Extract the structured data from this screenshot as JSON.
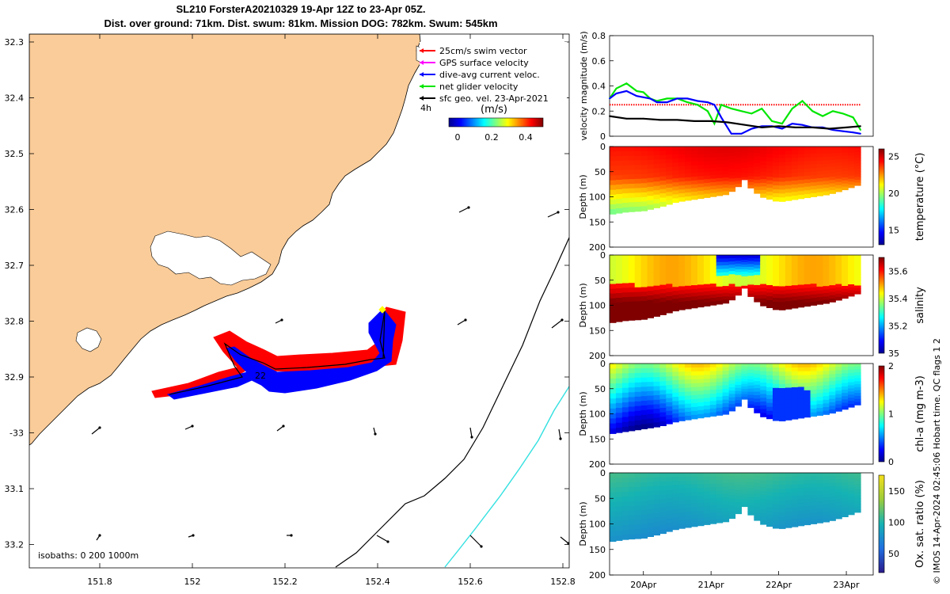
{
  "header": {
    "title_line1": "SL210 ForsterA20210329 19-Apr 12Z to 23-Apr 05Z.",
    "title_line2": "Dist. over ground: 71km. Dist. swum: 81km. Mission DOG: 782km. Swum: 545km"
  },
  "colors": {
    "land": "#FACC99",
    "sea": "#ffffff",
    "track_red": "#ff0000",
    "track_blue": "#0000ff",
    "net_velocity": "#00e600",
    "isobath_200": "#000000",
    "isobath_1000": "#33e0e0",
    "swim_vector": "#ff0000",
    "gps_velocity": "#ff00ff"
  },
  "map": {
    "legend": {
      "items": [
        {
          "label": "25cm/s swim vector",
          "color": "#ff0000"
        },
        {
          "label": "GPS surface velocity",
          "color": "#ff00ff"
        },
        {
          "label": "dive-avg current veloc.",
          "color": "#0000ff"
        },
        {
          "label": "net glider velocity",
          "color": "#00e600"
        },
        {
          "label": "sfc geo. vel. 23-Apr-2021",
          "color": "#000000"
        }
      ],
      "colorbar_unit": "(m/s)",
      "colorbar_ticks": [
        "0",
        "0.2",
        "0.4"
      ],
      "fragment_text": "4h"
    },
    "track_label": "22",
    "isobath_text": "isobaths: 0   200  1000m",
    "lat_ticks": [
      "32.3",
      "32.4",
      "32.5",
      "32.6",
      "32.7",
      "32.8",
      "32.9",
      "-33",
      "33.1",
      "33.2"
    ],
    "lon_ticks": [
      "151.8",
      "152",
      "152.2",
      "152.4",
      "152.6",
      "152.8"
    ]
  },
  "chart_data": [
    {
      "type": "line",
      "ylabel": "velocity magnitude (m/s)",
      "ylim": [
        0,
        0.8
      ],
      "yticks": [
        "0",
        "0.2",
        "0.4",
        "0.6",
        "0.8"
      ],
      "x_range_days": [
        19.5,
        23.21
      ],
      "series": [
        {
          "color": "#ff0000",
          "style": "dotted",
          "x": [
            19.5,
            23.21
          ],
          "values": [
            0.25,
            0.25
          ]
        },
        {
          "color": "#00e600",
          "x": [
            19.5,
            19.6,
            19.75,
            19.9,
            20.0,
            20.1,
            20.2,
            20.35,
            20.5,
            20.65,
            20.8,
            20.95,
            21.05,
            21.15,
            21.3,
            21.45,
            21.6,
            21.75,
            21.9,
            22.05,
            22.2,
            22.35,
            22.5,
            22.65,
            22.8,
            22.95,
            23.1,
            23.21
          ],
          "values": [
            0.3,
            0.38,
            0.42,
            0.36,
            0.35,
            0.3,
            0.28,
            0.3,
            0.3,
            0.27,
            0.25,
            0.2,
            0.1,
            0.25,
            0.22,
            0.2,
            0.18,
            0.22,
            0.12,
            0.1,
            0.22,
            0.28,
            0.2,
            0.16,
            0.2,
            0.18,
            0.15,
            0.05
          ]
        },
        {
          "color": "#0000ff",
          "x": [
            19.5,
            19.6,
            19.75,
            19.9,
            20.0,
            20.1,
            20.2,
            20.35,
            20.5,
            20.65,
            20.8,
            20.95,
            21.05,
            21.15,
            21.3,
            21.45,
            21.6,
            21.75,
            21.9,
            22.05,
            22.2,
            22.35,
            22.5,
            22.65,
            22.8,
            22.95,
            23.1,
            23.21
          ],
          "values": [
            0.3,
            0.34,
            0.36,
            0.32,
            0.31,
            0.3,
            0.27,
            0.27,
            0.3,
            0.3,
            0.28,
            0.27,
            0.25,
            0.15,
            0.02,
            0.02,
            0.06,
            0.08,
            0.08,
            0.06,
            0.1,
            0.09,
            0.07,
            0.07,
            0.05,
            0.04,
            0.03,
            0.02
          ]
        },
        {
          "color": "#000000",
          "x": [
            19.5,
            19.75,
            20.0,
            20.25,
            20.5,
            20.75,
            21.0,
            21.25,
            21.5,
            21.75,
            22.0,
            22.25,
            22.5,
            22.75,
            23.0,
            23.21
          ],
          "values": [
            0.16,
            0.14,
            0.14,
            0.13,
            0.13,
            0.12,
            0.12,
            0.11,
            0.09,
            0.07,
            0.08,
            0.07,
            0.07,
            0.06,
            0.07,
            0.08
          ]
        }
      ]
    },
    {
      "type": "heatmap",
      "ylabel": "Depth (m)",
      "yticks": [
        "0",
        "50",
        "100",
        "150",
        "200"
      ],
      "colorbar_label": "temperature (°C)",
      "colorbar_ticks": [
        "15",
        "20",
        "25"
      ],
      "clim": [
        13,
        26
      ],
      "bottom_depth_m": {
        "x": [
          19.5,
          19.75,
          20.0,
          20.25,
          20.5,
          20.75,
          21.0,
          21.25,
          21.4,
          21.5,
          21.6,
          21.75,
          22.0,
          22.25,
          22.5,
          22.75,
          23.0,
          23.21
        ],
        "values": [
          135,
          130,
          128,
          120,
          110,
          105,
          100,
          95,
          80,
          65,
          85,
          100,
          110,
          105,
          100,
          95,
          85,
          75
        ]
      }
    },
    {
      "type": "heatmap",
      "ylabel": "Depth (m)",
      "yticks": [
        "0",
        "50",
        "100",
        "150",
        "200"
      ],
      "colorbar_label": "salinity",
      "colorbar_ticks": [
        "35",
        "35.2",
        "35.4",
        "35.6"
      ],
      "clim": [
        35.0,
        35.7
      ],
      "bottom_depth_m": {
        "x": [
          19.5,
          19.75,
          20.0,
          20.25,
          20.5,
          20.75,
          21.0,
          21.25,
          21.4,
          21.5,
          21.6,
          21.75,
          22.0,
          22.25,
          22.5,
          22.75,
          23.0,
          23.21
        ],
        "values": [
          135,
          130,
          128,
          120,
          110,
          105,
          100,
          95,
          80,
          65,
          85,
          100,
          110,
          105,
          100,
          95,
          85,
          75
        ]
      }
    },
    {
      "type": "heatmap",
      "ylabel": "Depth (m)",
      "yticks": [
        "0",
        "50",
        "100",
        "150",
        "200"
      ],
      "colorbar_label": "chl-a (mg m-3)",
      "colorbar_ticks": [
        "0",
        "1",
        "2"
      ],
      "clim": [
        0,
        2
      ],
      "bottom_depth_m": {
        "x": [
          19.5,
          19.75,
          20.0,
          20.25,
          20.5,
          20.75,
          21.0,
          21.25,
          21.4,
          21.5,
          21.6,
          21.75,
          22.0,
          22.25,
          22.5,
          22.75,
          23.0,
          23.21
        ],
        "values": [
          140,
          135,
          130,
          125,
          115,
          110,
          105,
          100,
          85,
          70,
          90,
          105,
          115,
          110,
          105,
          100,
          90,
          80
        ]
      }
    },
    {
      "type": "heatmap",
      "ylabel": "Depth (m)",
      "yticks": [
        "0",
        "50",
        "100",
        "150",
        "200"
      ],
      "colorbar_label": "Ox. sat. ratio (%)",
      "colorbar_ticks": [
        "50",
        "100",
        "150"
      ],
      "clim": [
        20,
        175
      ],
      "xticks": [
        "20Apr",
        "21Apr",
        "22Apr",
        "23Apr"
      ],
      "bottom_depth_m": {
        "x": [
          19.5,
          19.75,
          20.0,
          20.25,
          20.5,
          20.75,
          21.0,
          21.25,
          21.4,
          21.5,
          21.6,
          21.75,
          22.0,
          22.25,
          22.5,
          22.75,
          23.0,
          23.21
        ],
        "values": [
          135,
          130,
          128,
          120,
          110,
          105,
          100,
          95,
          80,
          65,
          85,
          100,
          110,
          105,
          100,
          95,
          85,
          75
        ]
      }
    }
  ],
  "credit": "© IMOS 14-Apr-2024 02:45:06 Hobart time. QC flags 1  2"
}
